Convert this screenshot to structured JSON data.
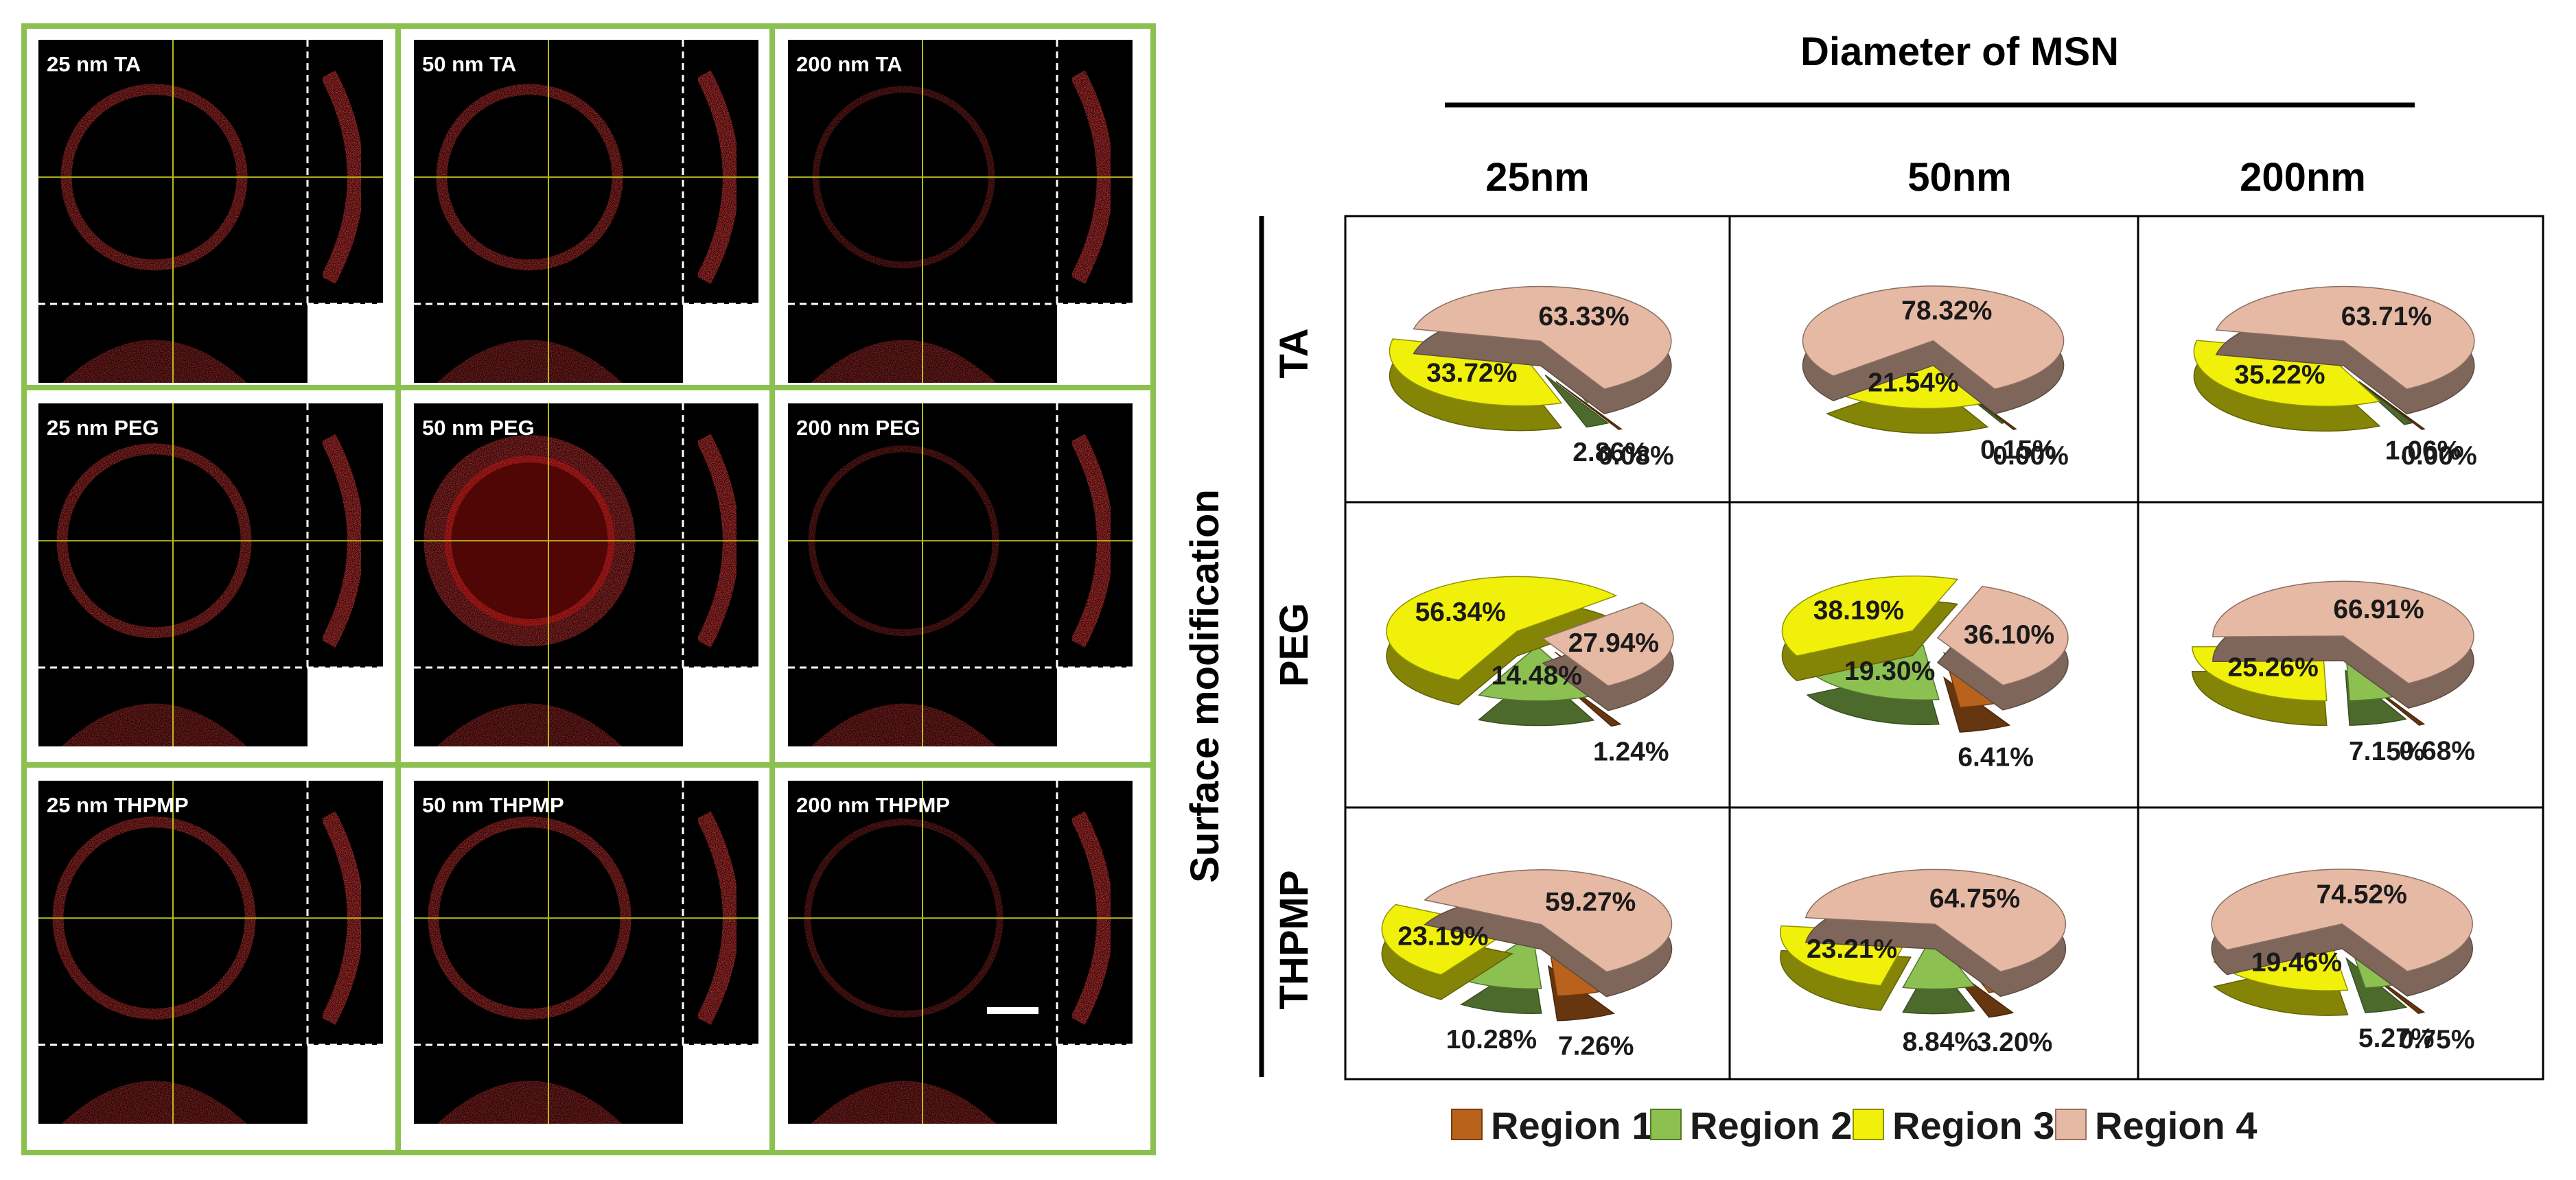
{
  "confocal": {
    "panels": [
      [
        "25 nm TA",
        "50 nm TA",
        "200 nm TA"
      ],
      [
        "25 nm PEG",
        "50 nm PEG",
        "200 nm PEG"
      ],
      [
        "25 nm THPMP",
        "50 nm THPMP",
        "200 nm THPMP"
      ]
    ]
  },
  "chart_data": {
    "type": "pie",
    "title": "Diameter of MSN",
    "x_axis_label": "Diameter of MSN",
    "y_axis_label": "Surface modification",
    "columns": [
      "25nm",
      "50nm",
      "200nm"
    ],
    "rows": [
      "TA",
      "PEG",
      "THPMP"
    ],
    "series_names": [
      "Region 1",
      "Region 2",
      "Region 3",
      "Region 4"
    ],
    "colors": {
      "Region 1": "#b8621b",
      "Region 2": "#8cc152",
      "Region 3": "#f0f00a",
      "Region 4": "#e6b9a4"
    },
    "legend_position": "bottom",
    "pies": [
      {
        "row": "TA",
        "col": "25nm",
        "values": [
          0.08,
          2.86,
          33.72,
          63.33
        ],
        "labels": [
          "0.08%",
          "2.86%",
          "33.72%",
          "63.33%"
        ]
      },
      {
        "row": "TA",
        "col": "50nm",
        "values": [
          0.0,
          0.15,
          21.54,
          78.32
        ],
        "labels": [
          "0.00%",
          "0.15%",
          "21.54%",
          "78.32%"
        ]
      },
      {
        "row": "TA",
        "col": "200nm",
        "values": [
          0.0,
          1.06,
          35.22,
          63.71
        ],
        "labels": [
          "0.00%",
          "1.06%",
          "35.22%",
          "63.71%"
        ]
      },
      {
        "row": "PEG",
        "col": "25nm",
        "values": [
          1.24,
          14.48,
          56.34,
          27.94
        ],
        "labels": [
          "1.24%",
          "14.48%",
          "56.34%",
          "27.94%"
        ]
      },
      {
        "row": "PEG",
        "col": "50nm",
        "values": [
          6.41,
          19.3,
          38.19,
          36.1
        ],
        "labels": [
          "6.41%",
          "19.30%",
          "38.19%",
          "36.10%"
        ]
      },
      {
        "row": "PEG",
        "col": "200nm",
        "values": [
          0.68,
          7.15,
          25.26,
          66.91
        ],
        "labels": [
          "0.68%",
          "7.15%",
          "25.26%",
          "66.91%"
        ]
      },
      {
        "row": "THPMP",
        "col": "25nm",
        "values": [
          7.26,
          10.28,
          23.19,
          59.27
        ],
        "labels": [
          "7.26%",
          "10.28%",
          "23.19%",
          "59.27%"
        ]
      },
      {
        "row": "THPMP",
        "col": "50nm",
        "values": [
          3.2,
          8.84,
          23.21,
          64.75
        ],
        "labels": [
          "3.20%",
          "8.84%",
          "23.21%",
          "64.75%"
        ]
      },
      {
        "row": "THPMP",
        "col": "200nm",
        "values": [
          0.75,
          5.27,
          19.46,
          74.52
        ],
        "labels": [
          "0.75%",
          "5.27%",
          "19.46%",
          "74.52%"
        ]
      }
    ]
  }
}
